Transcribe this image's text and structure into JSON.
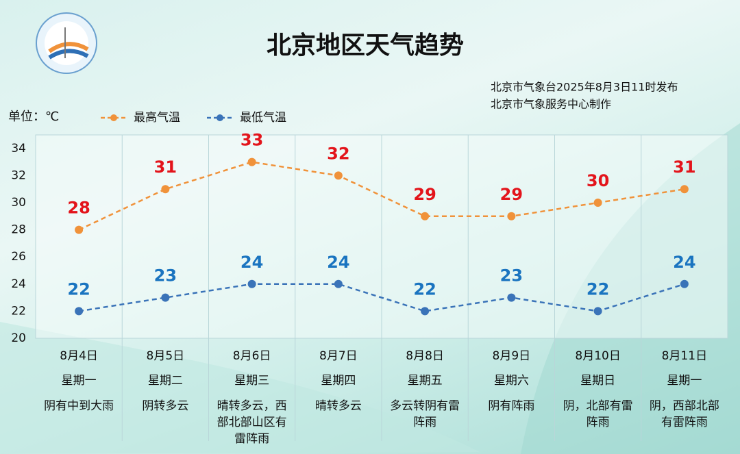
{
  "chart_data": {
    "type": "line",
    "title": "北京地区天气趋势",
    "source": [
      "北京市气象台2025年8月3日11时发布",
      "北京市气象服务中心制作"
    ],
    "unit_label": "单位：℃",
    "categories": [
      "8月4日",
      "8月5日",
      "8月6日",
      "8月7日",
      "8月8日",
      "8月9日",
      "8月10日",
      "8月11日"
    ],
    "weekdays": [
      "星期一",
      "星期二",
      "星期三",
      "星期四",
      "星期五",
      "星期六",
      "星期日",
      "星期一"
    ],
    "weather": [
      "阴有中到大雨",
      "阴转多云",
      "晴转多云，西部北部山区有雷阵雨",
      "晴转多云",
      "多云转阴有雷阵雨",
      "阴有阵雨",
      "阴，北部有雷阵雨",
      "阴，西部北部有雷阵雨"
    ],
    "series": [
      {
        "name": "最高气温",
        "color": "#f0923a",
        "label_color": "#e3141b",
        "values": [
          28,
          31,
          33,
          32,
          29,
          29,
          30,
          31
        ]
      },
      {
        "name": "最低气温",
        "color": "#3a73b8",
        "label_color": "#1a74c0",
        "values": [
          22,
          23,
          24,
          24,
          22,
          23,
          22,
          24
        ]
      }
    ],
    "ylim": [
      20,
      35
    ],
    "yticks": [
      20,
      22,
      24,
      26,
      28,
      30,
      32,
      34
    ]
  }
}
